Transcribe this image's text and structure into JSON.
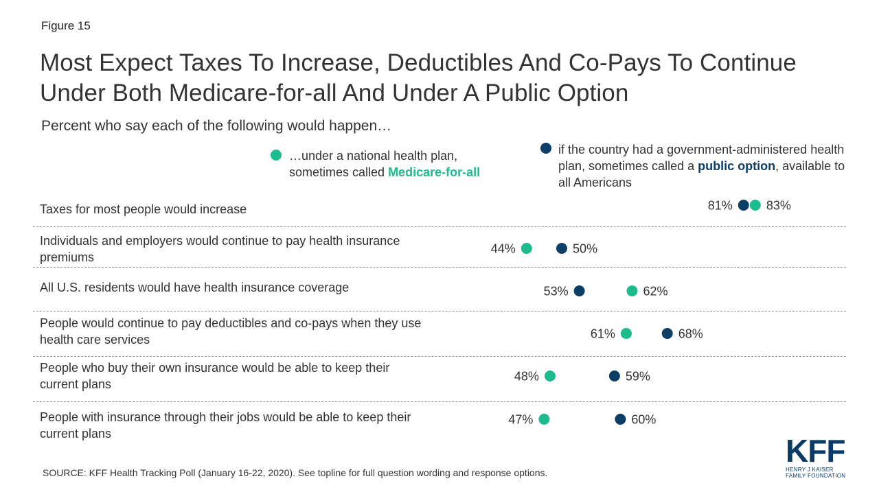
{
  "figure_label": "Figure 15",
  "title": "Most Expect Taxes To Increase, Deductibles And Co-Pays To Continue Under Both Medicare-for-all And Under A Public Option",
  "subtitle": "Percent who say each of the following would happen…",
  "legend": {
    "series1": {
      "text_prefix": "…under a national health plan, sometimes called ",
      "text_highlight": "Medicare-for-all",
      "text_suffix": ""
    },
    "series2": {
      "text_prefix": "if the country had a government-administered health plan, sometimes called a ",
      "text_highlight": "public option",
      "text_suffix": ", available to all Americans"
    }
  },
  "colors": {
    "medicare_for_all": "#1dbb8f",
    "public_option": "#0c3e66",
    "divider": "#8f8f8f"
  },
  "source": "SOURCE: KFF Health Tracking Poll (January 16-22, 2020). See topline for full question wording and response options.",
  "logo": {
    "main": "KFF",
    "line1": "HENRY J KAISER",
    "line2": "FAMILY FOUNDATION"
  },
  "chart_data": {
    "type": "dot",
    "categories": [
      "Taxes for most people would increase",
      "Individuals and employers would continue to pay health insurance premiums",
      "All U.S. residents would have health insurance coverage",
      "People would continue to pay deductibles and co-pays when they use health care services",
      "People who buy their own insurance would be able to keep their current plans",
      "People with insurance through their jobs would be able to keep their current plans"
    ],
    "series": [
      {
        "name": "Medicare-for-all",
        "values": [
          83,
          44,
          62,
          61,
          48,
          47
        ]
      },
      {
        "name": "public option",
        "values": [
          81,
          50,
          53,
          68,
          59,
          60
        ]
      }
    ],
    "value_format": "{v}%",
    "xlim": [
      0,
      100
    ]
  }
}
